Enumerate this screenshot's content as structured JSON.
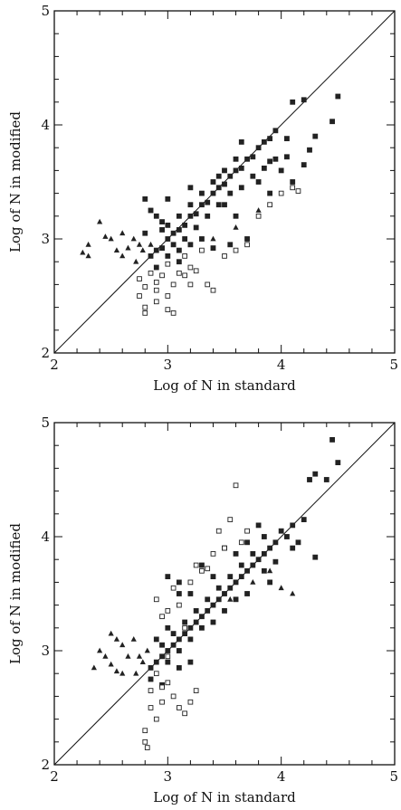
{
  "chart_data": [
    {
      "type": "scatter",
      "xlabel": "Log of N in standard",
      "ylabel": "Log of N in modified",
      "xlim": [
        2,
        5
      ],
      "ylim": [
        2,
        5
      ],
      "xticks": [
        "2",
        "3",
        "4",
        "5"
      ],
      "yticks": [
        "2",
        "3",
        "4",
        "5"
      ],
      "grid": false,
      "reference_line": [
        [
          2,
          2
        ],
        [
          5,
          5
        ]
      ],
      "series": [
        {
          "marker": "filled-square",
          "points": [
            [
              2.85,
              2.85
            ],
            [
              2.9,
              2.9
            ],
            [
              2.95,
              2.92
            ],
            [
              3.0,
              3.0
            ],
            [
              3.05,
              3.05
            ],
            [
              3.1,
              3.08
            ],
            [
              3.15,
              3.12
            ],
            [
              3.2,
              3.2
            ],
            [
              3.25,
              3.22
            ],
            [
              3.3,
              3.3
            ],
            [
              3.35,
              3.32
            ],
            [
              3.4,
              3.4
            ],
            [
              3.45,
              3.45
            ],
            [
              3.5,
              3.48
            ],
            [
              3.55,
              3.55
            ],
            [
              3.6,
              3.6
            ],
            [
              3.65,
              3.62
            ],
            [
              3.7,
              3.7
            ],
            [
              3.75,
              3.72
            ],
            [
              3.8,
              3.8
            ],
            [
              3.85,
              3.85
            ],
            [
              3.9,
              3.88
            ],
            [
              3.95,
              3.95
            ],
            [
              4.1,
              4.2
            ],
            [
              4.2,
              4.22
            ],
            [
              4.5,
              4.25
            ],
            [
              4.45,
              4.03
            ],
            [
              4.3,
              3.9
            ],
            [
              2.95,
              3.08
            ],
            [
              3.0,
              3.12
            ],
            [
              3.1,
              3.2
            ],
            [
              3.2,
              3.3
            ],
            [
              3.3,
              3.4
            ],
            [
              3.4,
              3.5
            ],
            [
              3.5,
              3.6
            ],
            [
              3.6,
              3.7
            ],
            [
              3.05,
              2.95
            ],
            [
              3.15,
              3.0
            ],
            [
              3.25,
              3.1
            ],
            [
              3.35,
              3.2
            ],
            [
              3.45,
              3.3
            ],
            [
              3.55,
              3.4
            ],
            [
              3.65,
              3.45
            ],
            [
              3.75,
              3.55
            ],
            [
              3.85,
              3.62
            ],
            [
              3.95,
              3.7
            ],
            [
              4.05,
              3.72
            ],
            [
              3.6,
              3.2
            ],
            [
              3.7,
              3.0
            ],
            [
              3.55,
              2.95
            ],
            [
              3.4,
              2.92
            ],
            [
              3.2,
              2.95
            ],
            [
              3.1,
              2.9
            ],
            [
              2.85,
              3.25
            ],
            [
              2.9,
              3.2
            ],
            [
              2.95,
              3.15
            ],
            [
              2.8,
              3.05
            ],
            [
              3.0,
              2.85
            ],
            [
              3.1,
              2.8
            ],
            [
              3.3,
              3.0
            ],
            [
              3.5,
              3.3
            ],
            [
              3.8,
              3.5
            ],
            [
              4.0,
              3.6
            ],
            [
              4.1,
              3.5
            ],
            [
              3.9,
              3.4
            ],
            [
              4.2,
              3.65
            ],
            [
              4.25,
              3.78
            ],
            [
              3.0,
              3.35
            ],
            [
              2.8,
              3.35
            ],
            [
              3.2,
              3.45
            ],
            [
              3.9,
              3.68
            ],
            [
              4.05,
              3.88
            ],
            [
              3.65,
              3.85
            ],
            [
              3.45,
              3.55
            ],
            [
              2.9,
              2.75
            ]
          ]
        },
        {
          "marker": "open-square",
          "points": [
            [
              2.75,
              2.5
            ],
            [
              2.8,
              2.4
            ],
            [
              2.8,
              2.35
            ],
            [
              2.9,
              2.55
            ],
            [
              3.0,
              2.5
            ],
            [
              3.05,
              2.6
            ],
            [
              2.85,
              2.7
            ],
            [
              2.95,
              2.68
            ],
            [
              3.1,
              2.7
            ],
            [
              3.15,
              2.68
            ],
            [
              3.2,
              2.6
            ],
            [
              3.0,
              2.38
            ],
            [
              3.05,
              2.35
            ],
            [
              2.9,
              2.45
            ],
            [
              3.2,
              2.75
            ],
            [
              3.25,
              2.72
            ],
            [
              3.35,
              2.6
            ],
            [
              3.4,
              2.55
            ],
            [
              3.5,
              2.85
            ],
            [
              3.6,
              2.9
            ],
            [
              3.7,
              2.95
            ],
            [
              3.8,
              3.2
            ],
            [
              3.9,
              3.3
            ],
            [
              4.0,
              3.4
            ],
            [
              4.1,
              3.45
            ],
            [
              4.15,
              3.42
            ],
            [
              2.75,
              2.65
            ],
            [
              2.8,
              2.58
            ],
            [
              3.3,
              2.9
            ],
            [
              3.15,
              2.85
            ],
            [
              3.0,
              2.78
            ],
            [
              2.9,
              2.62
            ]
          ]
        },
        {
          "marker": "filled-triangle",
          "points": [
            [
              2.25,
              2.88
            ],
            [
              2.3,
              2.95
            ],
            [
              2.4,
              3.15
            ],
            [
              2.5,
              3.0
            ],
            [
              2.55,
              2.9
            ],
            [
              2.6,
              2.85
            ],
            [
              2.65,
              2.92
            ],
            [
              2.7,
              3.0
            ],
            [
              2.75,
              2.95
            ],
            [
              2.78,
              2.9
            ],
            [
              2.3,
              2.85
            ],
            [
              2.45,
              3.02
            ],
            [
              2.85,
              2.95
            ],
            [
              2.6,
              3.05
            ],
            [
              2.72,
              2.8
            ],
            [
              3.4,
              3.0
            ],
            [
              3.6,
              3.1
            ],
            [
              3.8,
              3.25
            ]
          ]
        }
      ]
    },
    {
      "type": "scatter",
      "xlabel": "Log of N in standard",
      "ylabel": "Log of N in modified",
      "xlim": [
        2,
        5
      ],
      "ylim": [
        2,
        5
      ],
      "xticks": [
        "2",
        "3",
        "4",
        "5"
      ],
      "yticks": [
        "2",
        "3",
        "4",
        "5"
      ],
      "grid": false,
      "reference_line": [
        [
          2,
          2
        ],
        [
          5,
          5
        ]
      ],
      "series": [
        {
          "marker": "filled-square",
          "points": [
            [
              2.85,
              2.85
            ],
            [
              2.9,
              2.9
            ],
            [
              2.95,
              2.95
            ],
            [
              3.0,
              3.0
            ],
            [
              3.05,
              3.05
            ],
            [
              3.1,
              3.1
            ],
            [
              3.15,
              3.15
            ],
            [
              3.2,
              3.2
            ],
            [
              3.25,
              3.25
            ],
            [
              3.3,
              3.3
            ],
            [
              3.35,
              3.35
            ],
            [
              3.4,
              3.4
            ],
            [
              3.45,
              3.45
            ],
            [
              3.5,
              3.5
            ],
            [
              3.55,
              3.55
            ],
            [
              3.6,
              3.6
            ],
            [
              3.65,
              3.65
            ],
            [
              3.7,
              3.7
            ],
            [
              3.75,
              3.75
            ],
            [
              3.8,
              3.8
            ],
            [
              3.85,
              3.85
            ],
            [
              3.9,
              3.9
            ],
            [
              3.95,
              3.95
            ],
            [
              4.0,
              4.05
            ],
            [
              4.1,
              4.1
            ],
            [
              4.2,
              4.15
            ],
            [
              4.25,
              4.5
            ],
            [
              4.3,
              4.55
            ],
            [
              4.4,
              4.5
            ],
            [
              4.5,
              4.65
            ],
            [
              4.45,
              4.85
            ],
            [
              3.9,
              3.6
            ],
            [
              3.7,
              3.5
            ],
            [
              3.6,
              3.45
            ],
            [
              3.5,
              3.35
            ],
            [
              3.4,
              3.25
            ],
            [
              3.3,
              3.2
            ],
            [
              3.2,
              3.1
            ],
            [
              3.1,
              3.0
            ],
            [
              3.0,
              2.9
            ],
            [
              2.95,
              3.05
            ],
            [
              3.05,
              3.15
            ],
            [
              3.15,
              3.25
            ],
            [
              3.25,
              3.35
            ],
            [
              3.35,
              3.45
            ],
            [
              3.45,
              3.55
            ],
            [
              3.55,
              3.65
            ],
            [
              3.65,
              3.75
            ],
            [
              3.75,
              3.85
            ],
            [
              4.05,
              4.0
            ],
            [
              4.15,
              3.95
            ],
            [
              3.85,
              3.7
            ],
            [
              3.95,
              3.78
            ],
            [
              3.7,
              3.95
            ],
            [
              3.5,
              3.9
            ],
            [
              3.3,
              3.75
            ],
            [
              3.1,
              3.6
            ],
            [
              3.2,
              3.5
            ],
            [
              3.4,
              3.65
            ],
            [
              3.6,
              3.85
            ],
            [
              3.8,
              4.1
            ],
            [
              3.0,
              3.65
            ],
            [
              3.1,
              3.5
            ],
            [
              3.0,
              3.2
            ],
            [
              2.9,
              3.1
            ],
            [
              2.85,
              2.75
            ],
            [
              2.95,
              2.7
            ],
            [
              3.1,
              2.85
            ],
            [
              3.2,
              2.9
            ],
            [
              4.1,
              3.9
            ],
            [
              4.3,
              3.82
            ],
            [
              3.85,
              4.0
            ]
          ]
        },
        {
          "marker": "open-square",
          "points": [
            [
              2.8,
              2.3
            ],
            [
              2.8,
              2.2
            ],
            [
              2.82,
              2.15
            ],
            [
              2.85,
              2.5
            ],
            [
              2.9,
              2.4
            ],
            [
              2.95,
              2.55
            ],
            [
              3.05,
              2.6
            ],
            [
              3.1,
              2.5
            ],
            [
              3.15,
              2.45
            ],
            [
              3.2,
              2.55
            ],
            [
              3.25,
              2.65
            ],
            [
              2.85,
              2.65
            ],
            [
              2.95,
              2.68
            ],
            [
              3.0,
              2.72
            ],
            [
              3.6,
              4.45
            ],
            [
              3.55,
              4.15
            ],
            [
              3.45,
              4.05
            ],
            [
              3.25,
              3.75
            ],
            [
              3.3,
              3.7
            ],
            [
              3.35,
              3.72
            ],
            [
              3.2,
              3.6
            ],
            [
              3.05,
              3.55
            ],
            [
              3.1,
              3.4
            ],
            [
              3.0,
              3.35
            ],
            [
              2.95,
              3.3
            ],
            [
              2.9,
              3.45
            ],
            [
              3.15,
              3.2
            ],
            [
              3.0,
              2.95
            ],
            [
              2.9,
              2.8
            ],
            [
              3.7,
              4.05
            ],
            [
              3.65,
              3.95
            ],
            [
              3.4,
              3.85
            ],
            [
              3.5,
              3.9
            ]
          ]
        },
        {
          "marker": "filled-triangle",
          "points": [
            [
              2.35,
              2.85
            ],
            [
              2.4,
              3.0
            ],
            [
              2.45,
              2.95
            ],
            [
              2.5,
              2.88
            ],
            [
              2.55,
              2.82
            ],
            [
              2.6,
              3.05
            ],
            [
              2.65,
              2.95
            ],
            [
              2.7,
              3.1
            ],
            [
              2.72,
              2.8
            ],
            [
              2.75,
              2.95
            ],
            [
              2.78,
              2.9
            ],
            [
              2.6,
              2.8
            ],
            [
              2.55,
              3.1
            ],
            [
              2.5,
              3.15
            ],
            [
              2.82,
              3.0
            ],
            [
              3.9,
              3.7
            ],
            [
              4.1,
              3.5
            ],
            [
              4.0,
              3.55
            ],
            [
              3.75,
              3.6
            ],
            [
              3.55,
              3.45
            ]
          ]
        }
      ]
    }
  ]
}
